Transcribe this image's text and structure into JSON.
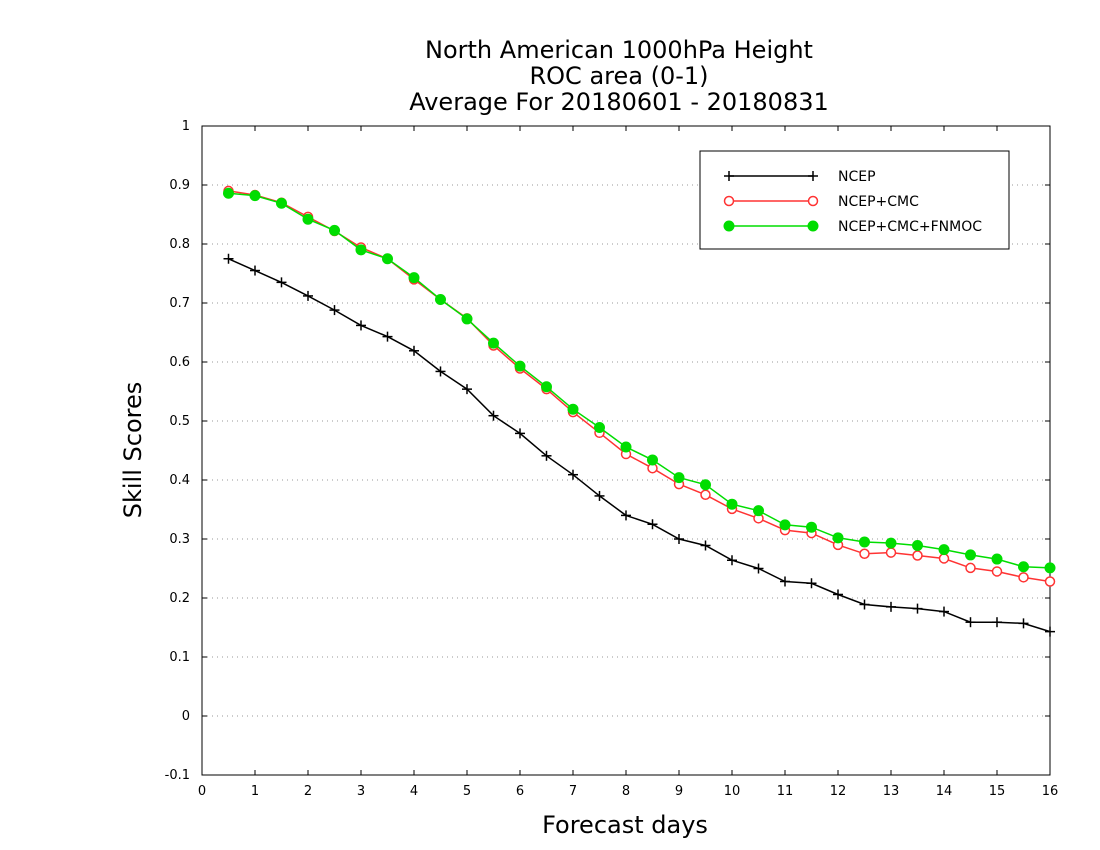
{
  "chart_data": {
    "type": "line",
    "title_lines": [
      "North American 1000hPa Height",
      "ROC area (0-1)",
      "Average For 20180601 - 20180831"
    ],
    "xlabel": "Forecast days",
    "ylabel": "Skill Scores",
    "xlim": [
      0,
      16
    ],
    "ylim": [
      -0.1,
      1
    ],
    "x_ticks": [
      "0",
      "1",
      "2",
      "3",
      "4",
      "5",
      "6",
      "7",
      "8",
      "9",
      "10",
      "11",
      "12",
      "13",
      "14",
      "15",
      "16"
    ],
    "y_ticks": [
      "-0.1",
      "0",
      "0.1",
      "0.2",
      "0.3",
      "0.4",
      "0.5",
      "0.6",
      "0.7",
      "0.8",
      "0.9",
      "1"
    ],
    "grid": "horizontal dotted",
    "legend_position": "top-right",
    "x": [
      0.5,
      1,
      1.5,
      2,
      2.5,
      3,
      3.5,
      4,
      4.5,
      5,
      5.5,
      6,
      6.5,
      7,
      7.5,
      8,
      8.5,
      9,
      9.5,
      10,
      10.5,
      11,
      11.5,
      12,
      12.5,
      13,
      13.5,
      14,
      14.5,
      15,
      15.5,
      16
    ],
    "series": [
      {
        "name": "NCEP",
        "color": "#000000",
        "marker": "plus",
        "values": [
          0.775,
          0.755,
          0.735,
          0.712,
          0.688,
          0.662,
          0.643,
          0.619,
          0.584,
          0.554,
          0.509,
          0.479,
          0.441,
          0.409,
          0.373,
          0.34,
          0.325,
          0.3,
          0.289,
          0.264,
          0.25,
          0.228,
          0.225,
          0.206,
          0.189,
          0.185,
          0.182,
          0.177,
          0.159,
          0.159,
          0.157,
          0.143
        ]
      },
      {
        "name": "NCEP+CMC",
        "color": "#ff3333",
        "marker": "open-circle",
        "values": [
          0.89,
          0.883,
          0.87,
          0.846,
          0.822,
          0.794,
          0.775,
          0.74,
          0.706,
          0.674,
          0.628,
          0.589,
          0.554,
          0.515,
          0.48,
          0.444,
          0.42,
          0.393,
          0.375,
          0.351,
          0.335,
          0.315,
          0.31,
          0.29,
          0.275,
          0.277,
          0.272,
          0.267,
          0.251,
          0.245,
          0.235,
          0.228
        ]
      },
      {
        "name": "NCEP+CMC+FNMOC",
        "color": "#00dd00",
        "marker": "filled-circle",
        "values": [
          0.886,
          0.882,
          0.869,
          0.842,
          0.823,
          0.79,
          0.775,
          0.743,
          0.706,
          0.673,
          0.632,
          0.593,
          0.558,
          0.52,
          0.489,
          0.456,
          0.434,
          0.404,
          0.392,
          0.359,
          0.348,
          0.324,
          0.32,
          0.302,
          0.295,
          0.293,
          0.289,
          0.282,
          0.273,
          0.266,
          0.253,
          0.251
        ]
      }
    ]
  }
}
